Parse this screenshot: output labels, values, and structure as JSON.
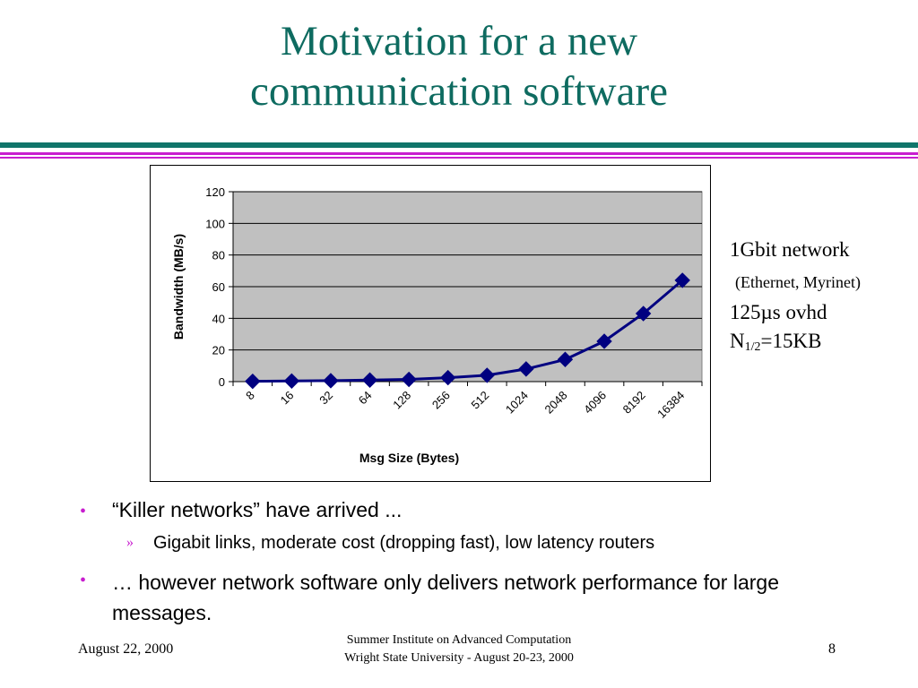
{
  "slide": {
    "title_line1": "Motivation for a new",
    "title_line2": "communication software"
  },
  "chart_data": {
    "type": "line",
    "categories": [
      "8",
      "16",
      "32",
      "64",
      "128",
      "256",
      "512",
      "1024",
      "2048",
      "4096",
      "8192",
      "16384"
    ],
    "series": [
      {
        "values": [
          0.2,
          0.4,
          0.6,
          1.0,
          1.4,
          2.5,
          4.0,
          8.0,
          14.0,
          25.5,
          43.0,
          64.0
        ]
      }
    ],
    "xlabel": "Msg Size (Bytes)",
    "ylabel": "Bandwidth (MB/s)",
    "ylim": [
      0,
      120
    ],
    "yticks": [
      "0",
      "20",
      "40",
      "60",
      "80",
      "100",
      "120"
    ],
    "grid": true,
    "legend": "none",
    "colors": {
      "line": "#000080",
      "plot_bg": "#c0c0c0"
    }
  },
  "notes": {
    "line1": "1Gbit network",
    "line2": "(Ethernet, Myrinet)",
    "line3": "125µs ovhd",
    "line4_pre": "N",
    "line4_sub": "1/2",
    "line4_post": "=15KB"
  },
  "bullets": {
    "item1": "“Killer networks” have arrived ...",
    "sub1": "Gigabit links, moderate cost (dropping fast), low latency routers",
    "item2": "… however network software only delivers network performance for large messages.",
    "mark_main": "•",
    "mark_sub": "»"
  },
  "footer": {
    "date": "August 22, 2000",
    "center_line1": "Summer Institute on Advanced Computation",
    "center_line2": "Wright State University - August 20-23, 2000",
    "page": "8"
  },
  "colors": {
    "title": "#0e6b60",
    "accent_magenta": "#c81ecf",
    "rule_teal": "#10756a"
  }
}
